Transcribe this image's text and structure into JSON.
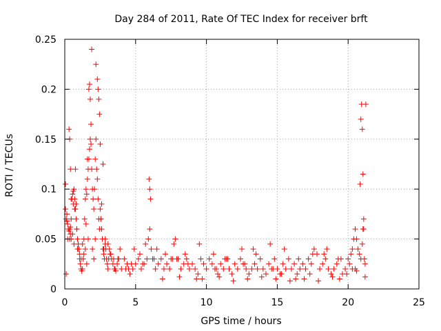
{
  "chart_data": {
    "type": "scatter",
    "title": "Day 284 of 2011, Rate Of TEC Index for receiver brft",
    "xlabel": "GPS time / hours",
    "ylabel": "ROTI / TECUs",
    "xlim": [
      0,
      25
    ],
    "ylim": [
      0,
      0.25
    ],
    "xticks": [
      0,
      5,
      10,
      15,
      20,
      25
    ],
    "xtick_labels": [
      "0",
      "5",
      "10",
      "15",
      "20",
      "25"
    ],
    "yticks": [
      0,
      0.05,
      0.1,
      0.15,
      0.2,
      0.25
    ],
    "ytick_labels": [
      "0",
      "0.05",
      "0.1",
      "0.15",
      "0.2",
      "0.25"
    ],
    "grid": true,
    "marker": "plus",
    "series": [
      {
        "name": "ROTI",
        "color": "#ff0000",
        "x": [
          0.05,
          0.1,
          0.15,
          0.2,
          0.25,
          0.3,
          0.35,
          0.4,
          0.45,
          0.5,
          0.55,
          0.6,
          0.65,
          0.7,
          0.75,
          0.8,
          0.85,
          0.9,
          0.95,
          1.0,
          1.05,
          1.1,
          1.15,
          1.2,
          1.25,
          1.3,
          1.35,
          1.4,
          1.45,
          1.5,
          1.55,
          1.6,
          1.65,
          1.7,
          1.75,
          1.8,
          1.85,
          1.9,
          1.95,
          2.0,
          2.05,
          2.1,
          2.15,
          2.2,
          2.25,
          2.3,
          2.35,
          2.4,
          2.45,
          2.5,
          2.55,
          2.6,
          2.65,
          2.7,
          2.75,
          2.8,
          2.85,
          2.9,
          2.95,
          3.0,
          3.05,
          3.1,
          3.15,
          3.2,
          3.3,
          3.4,
          3.5,
          3.6,
          3.7,
          3.8,
          3.9,
          4.0,
          4.2,
          4.4,
          4.6,
          4.8,
          5.0,
          5.2,
          5.4,
          5.6,
          5.8,
          5.9,
          6.0,
          6.1,
          6.2,
          6.4,
          6.6,
          6.8,
          7.0,
          7.2,
          7.4,
          7.6,
          7.7,
          7.8,
          8.0,
          8.2,
          8.4,
          8.6,
          8.8,
          9.0,
          9.2,
          9.4,
          9.6,
          9.8,
          10.0,
          10.2,
          10.4,
          10.6,
          10.8,
          11.0,
          11.2,
          11.4,
          11.6,
          11.8,
          12.0,
          12.2,
          12.4,
          12.6,
          12.8,
          13.0,
          13.2,
          13.4,
          13.6,
          13.8,
          14.0,
          14.2,
          14.4,
          14.6,
          14.8,
          15.0,
          15.2,
          15.4,
          15.6,
          15.8,
          16.0,
          16.2,
          16.4,
          16.6,
          16.8,
          17.0,
          17.2,
          17.4,
          17.6,
          17.8,
          18.0,
          18.2,
          18.4,
          18.6,
          18.8,
          19.0,
          19.2,
          19.4,
          19.6,
          19.8,
          20.0,
          20.1,
          20.2,
          20.3,
          20.4,
          20.5,
          20.6,
          20.7,
          20.8,
          20.9,
          21.0,
          21.05,
          21.1,
          21.15,
          21.2,
          21.25,
          0.3,
          0.35,
          0.4,
          0.45,
          0.6,
          0.7,
          0.75,
          1.6,
          1.7,
          1.75,
          1.8,
          1.85,
          1.9,
          2.2,
          2.3,
          2.35,
          2.4,
          2.45,
          2.5,
          2.6,
          2.7,
          5.95,
          6.0,
          6.05,
          20.85,
          20.9,
          20.95,
          21.0,
          21.05,
          21.1,
          0.05,
          0.15,
          0.35,
          0.55,
          0.85,
          1.05,
          1.25,
          1.45,
          1.65,
          2.15,
          2.75,
          3.25,
          3.75,
          4.5,
          5.5,
          6.5,
          7.5,
          8.5,
          9.5,
          10.5,
          11.5,
          12.5,
          13.5,
          14.5,
          15.5,
          16.5,
          17.5,
          18.5,
          19.5,
          20.5,
          0.2,
          0.4,
          0.65,
          0.9,
          1.15,
          1.35,
          1.55,
          1.95,
          2.55,
          2.85,
          3.05,
          3.45,
          4.3,
          4.9,
          5.3,
          6.3,
          7.1,
          7.9,
          8.7,
          9.3,
          10.7,
          11.3,
          12.7,
          13.3,
          14.7,
          15.3,
          16.3,
          17.3,
          18.3,
          19.3,
          0.1,
          0.45,
          0.8,
          1.5,
          2.05,
          3.55,
          4.7,
          5.7,
          6.9,
          8.1,
          9.7,
          10.9,
          11.9,
          12.9,
          13.9,
          14.9,
          15.9,
          16.9,
          17.9,
          18.9,
          19.9,
          20.3,
          20.6,
          21.2
        ],
        "y": [
          0.105,
          0.07,
          0.068,
          0.065,
          0.06,
          0.058,
          0.06,
          0.062,
          0.07,
          0.09,
          0.095,
          0.098,
          0.1,
          0.09,
          0.08,
          0.07,
          0.06,
          0.05,
          0.045,
          0.04,
          0.03,
          0.025,
          0.02,
          0.018,
          0.02,
          0.03,
          0.05,
          0.07,
          0.09,
          0.1,
          0.095,
          0.11,
          0.12,
          0.13,
          0.14,
          0.15,
          0.145,
          0.12,
          0.1,
          0.09,
          0.08,
          0.1,
          0.13,
          0.15,
          0.12,
          0.11,
          0.09,
          0.07,
          0.06,
          0.08,
          0.07,
          0.06,
          0.05,
          0.04,
          0.035,
          0.03,
          0.045,
          0.04,
          0.03,
          0.025,
          0.02,
          0.03,
          0.04,
          0.035,
          0.03,
          0.025,
          0.02,
          0.018,
          0.025,
          0.03,
          0.04,
          0.02,
          0.03,
          0.025,
          0.015,
          0.02,
          0.025,
          0.03,
          0.02,
          0.025,
          0.03,
          0.05,
          0.06,
          0.04,
          0.03,
          0.02,
          0.025,
          0.03,
          0.02,
          0.025,
          0.02,
          0.03,
          0.045,
          0.05,
          0.03,
          0.02,
          0.025,
          0.03,
          0.02,
          0.025,
          0.02,
          0.015,
          0.03,
          0.025,
          0.02,
          0.03,
          0.025,
          0.02,
          0.015,
          0.025,
          0.02,
          0.03,
          0.02,
          0.015,
          0.025,
          0.02,
          0.03,
          0.025,
          0.02,
          0.015,
          0.02,
          0.025,
          0.02,
          0.03,
          0.02,
          0.015,
          0.025,
          0.02,
          0.03,
          0.02,
          0.015,
          0.025,
          0.02,
          0.03,
          0.02,
          0.025,
          0.015,
          0.02,
          0.025,
          0.02,
          0.03,
          0.025,
          0.04,
          0.035,
          0.02,
          0.025,
          0.03,
          0.02,
          0.015,
          0.02,
          0.025,
          0.01,
          0.015,
          0.02,
          0.03,
          0.025,
          0.035,
          0.04,
          0.05,
          0.06,
          0.05,
          0.04,
          0.035,
          0.03,
          0.045,
          0.06,
          0.07,
          0.03,
          0.025,
          0.185,
          0.16,
          0.15,
          0.12,
          0.09,
          0.085,
          0.08,
          0.12,
          0.13,
          0.2,
          0.205,
          0.19,
          0.165,
          0.24,
          0.225,
          0.21,
          0.2,
          0.19,
          0.175,
          0.145,
          0.085,
          0.125,
          0.11,
          0.1,
          0.09,
          0.105,
          0.17,
          0.185,
          0.16,
          0.115,
          0.06,
          0.08,
          0.075,
          0.05,
          0.055,
          0.06,
          0.035,
          0.045,
          0.04,
          0.05,
          0.05,
          0.04,
          0.035,
          0.03,
          0.02,
          0.025,
          0.04,
          0.03,
          0.035,
          0.045,
          0.035,
          0.03,
          0.04,
          0.035,
          0.045,
          0.04,
          0.03,
          0.035,
          0.04,
          0.03,
          0.02,
          0.05,
          0.055,
          0.045,
          0.04,
          0.03,
          0.035,
          0.025,
          0.04,
          0.07,
          0.05,
          0.045,
          0.03,
          0.02,
          0.04,
          0.035,
          0.03,
          0.035,
          0.03,
          0.025,
          0.01,
          0.02,
          0.03,
          0.025,
          0.04,
          0.02,
          0.015,
          0.01,
          0.015,
          0.035,
          0.03,
          0.015,
          0.05,
          0.085,
          0.065,
          0.03,
          0.02,
          0.025,
          0.045,
          0.01,
          0.012,
          0.01,
          0.012,
          0.008,
          0.01,
          0.012,
          0.01,
          0.008,
          0.01,
          0.008,
          0.012,
          0.015,
          0.02,
          0.018,
          0.012
        ]
      }
    ]
  }
}
